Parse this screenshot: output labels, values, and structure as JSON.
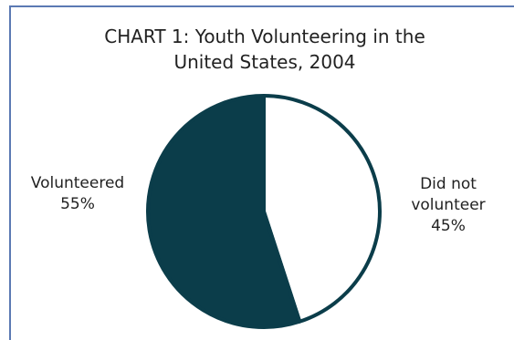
{
  "chart_data": {
    "type": "pie",
    "title_line1": "CHART 1: Youth Volunteering in the",
    "title_line2": "United States, 2004",
    "slices": [
      {
        "label_line1": "Did not",
        "label_line2": "volunteer",
        "value_text": "45%",
        "value": 45,
        "color": "#ffffff"
      },
      {
        "label_line1": "Volunteered",
        "label_line2": "",
        "value_text": "55%",
        "value": 55,
        "color": "#0b3d4a"
      }
    ],
    "start_angle_deg": 0,
    "outline_color": "#0b3d4a"
  }
}
